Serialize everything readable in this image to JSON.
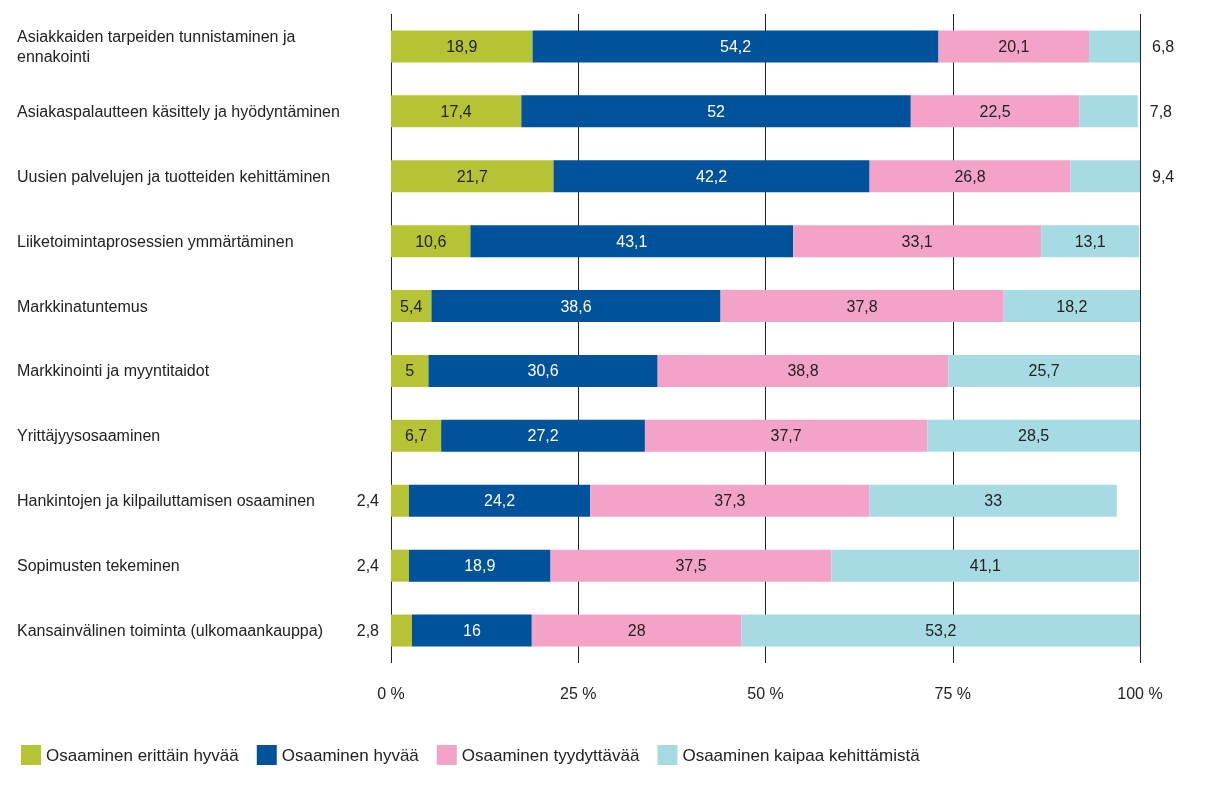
{
  "chart_data": {
    "type": "bar",
    "orientation": "horizontal",
    "stacked": true,
    "categories": [
      "Asiakkaiden tarpeiden tunnistaminen ja ennakointi",
      "Asiakaspalautteen käsittely ja hyödyntäminen",
      "Uusien palvelujen ja tuotteiden kehittäminen",
      "Liiketoimintaprosessien ymmärtäminen",
      "Markkinatuntemus",
      "Markkinointi ja myyntitaidot",
      "Yrittäjyysosaaminen",
      "Hankintojen ja kilpailuttamisen osaaminen",
      "Sopimusten tekeminen",
      "Kansainvälinen toiminta (ulkomaankauppa)"
    ],
    "series": [
      {
        "name": "Osaaminen erittäin hyvää",
        "color": "#b5c334",
        "values": [
          18.9,
          17.4,
          21.7,
          10.6,
          5.4,
          5,
          6.7,
          2.4,
          2.4,
          2.8
        ],
        "value_labels": [
          "18,9",
          "17,4",
          "21,7",
          "10,6",
          "5,4",
          "5",
          "6,7",
          "2,4",
          "2,4",
          "2,8"
        ]
      },
      {
        "name": "Osaaminen hyvää",
        "color": "#00529b",
        "values": [
          54.2,
          52,
          42.2,
          43.1,
          38.6,
          30.6,
          27.2,
          24.2,
          18.9,
          16
        ],
        "value_labels": [
          "54,2",
          "52",
          "42,2",
          "43,1",
          "38,6",
          "30,6",
          "27,2",
          "24,2",
          "18,9",
          "16"
        ]
      },
      {
        "name": "Osaaminen tyydyttävää",
        "color": "#f4a3c8",
        "values": [
          20.1,
          22.5,
          26.8,
          33.1,
          37.8,
          38.8,
          37.7,
          37.3,
          37.5,
          28
        ],
        "value_labels": [
          "20,1",
          "22,5",
          "26,8",
          "33,1",
          "37,8",
          "38,8",
          "37,7",
          "37,3",
          "37,5",
          "28"
        ]
      },
      {
        "name": "Osaaminen kaipaa kehittämistä",
        "color": "#a6dbe3",
        "values": [
          6.8,
          7.8,
          9.4,
          13.1,
          18.2,
          25.7,
          28.5,
          33,
          41.1,
          53.2
        ],
        "value_labels": [
          "6,8",
          "7,8",
          "9,4",
          "13,1",
          "18,2",
          "25,7",
          "28,5",
          "33",
          "41,1",
          "53,2"
        ]
      }
    ],
    "xlim": [
      0,
      100
    ],
    "xticks": [
      {
        "value": 0,
        "label": "0 %"
      },
      {
        "value": 25,
        "label": "25 %"
      },
      {
        "value": 50,
        "label": "50 %"
      },
      {
        "value": 75,
        "label": "75 %"
      },
      {
        "value": 100,
        "label": "100 %"
      }
    ],
    "grid": "x",
    "legend": "bottom"
  }
}
